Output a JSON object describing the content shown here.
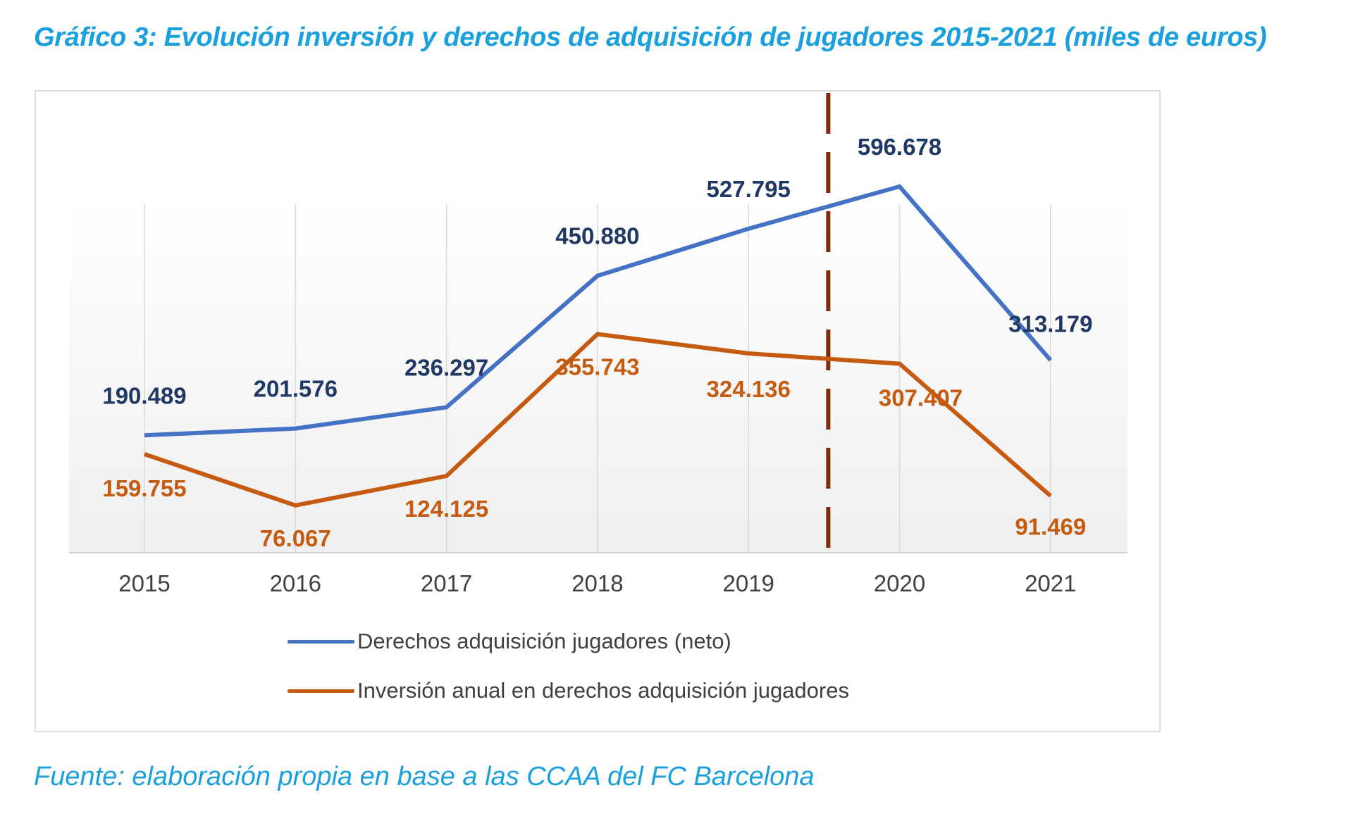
{
  "title": "Gráfico 3: Evolución inversión y derechos de adquisición de jugadores 2015-2021 (miles de euros)",
  "source": "Fuente: elaboración propia en base a las CCAA del FC Barcelona",
  "colors": {
    "title": "#1aa0dc",
    "series_derechos": "#4472c4",
    "series_inversion": "#c55a11",
    "label_derechos": "#1f3864",
    "label_inversion": "#c55a11",
    "marker_line": "#7b2c0a",
    "axis_text": "#404040"
  },
  "chart_data": {
    "type": "line",
    "title": "Gráfico 3: Evolución inversión y derechos de adquisición de jugadores 2015-2021 (miles de euros)",
    "xlabel": "",
    "ylabel": "",
    "unit": "miles de euros",
    "categories": [
      "2015",
      "2016",
      "2017",
      "2018",
      "2019",
      "2020",
      "2021"
    ],
    "ylim": [
      0,
      750
    ],
    "grid": "vertical",
    "legend_position": "bottom",
    "series": [
      {
        "name": "Derechos adquisición jugadores (neto)",
        "values": [
          190489,
          201576,
          236297,
          450880,
          527795,
          596678,
          313179
        ],
        "labels": [
          "190.489",
          "201.576",
          "236.297",
          "450.880",
          "527.795",
          "596.678",
          "313.179"
        ],
        "color": "#4472c4"
      },
      {
        "name": "Inversión anual en derechos adquisición jugadores",
        "values": [
          159755,
          76067,
          124125,
          355743,
          324136,
          307407,
          91469
        ],
        "labels": [
          "159.755",
          "76.067",
          "124.125",
          "355.743",
          "324.136",
          "307.407",
          "91.469"
        ],
        "color": "#c55a11"
      }
    ],
    "annotations": [
      {
        "type": "vertical-dashed-line",
        "between": [
          "2019",
          "2020"
        ],
        "color": "#7b2c0a"
      }
    ]
  }
}
